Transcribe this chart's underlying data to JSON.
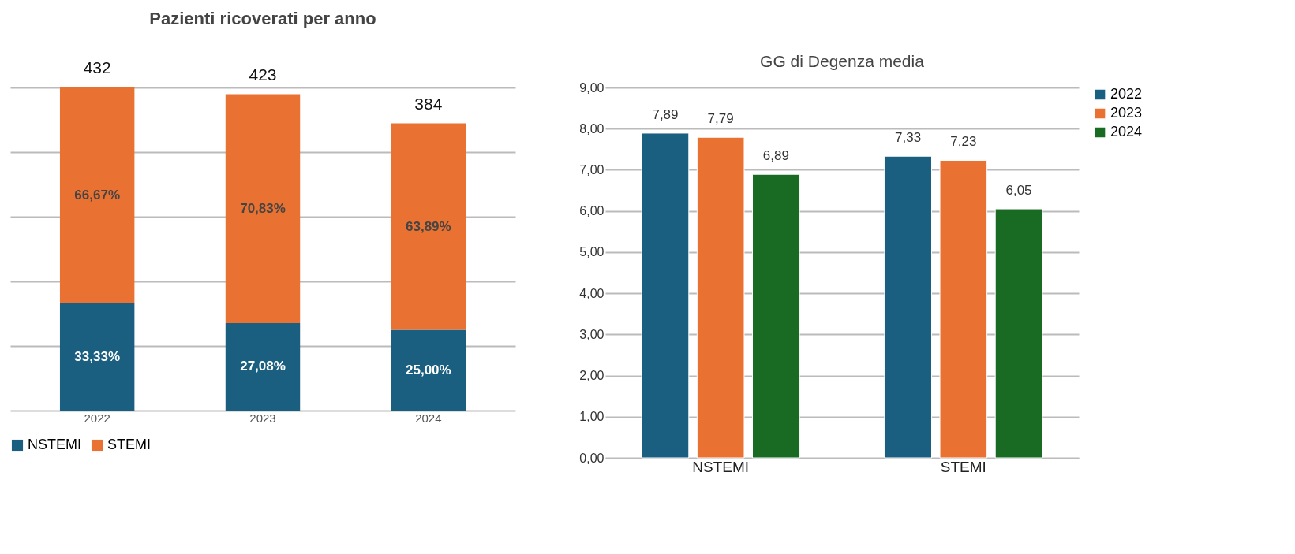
{
  "chart_data": [
    {
      "type": "bar",
      "title": "Pazienti ricoverati per anno",
      "stacked": true,
      "categories": [
        "2022",
        "2023",
        "2024"
      ],
      "series": [
        {
          "name": "NSTEMI",
          "color": "#1a5e80",
          "values": [
            33.33,
            27.08,
            25.0
          ],
          "value_labels": [
            "33,33%",
            "27,08%",
            "25,00%"
          ]
        },
        {
          "name": "STEMI",
          "color": "#e97132",
          "values": [
            66.67,
            70.83,
            63.89
          ],
          "value_labels": [
            "66,67%",
            "70,83%",
            "63,89%"
          ]
        }
      ],
      "annotations": [
        {
          "text": "432",
          "x": "2022",
          "y": 100
        },
        {
          "text": "423",
          "x": "2023",
          "y": 97.91
        },
        {
          "text": "384",
          "x": "2024",
          "y": 88.89
        }
      ],
      "tick_labels": "x",
      "grid": "y",
      "legend": "bottom"
    },
    {
      "type": "bar",
      "title": "GG di Degenza media",
      "categories": [
        "NSTEMI",
        "STEMI"
      ],
      "series": [
        {
          "name": "2022",
          "color": "#1a5e80",
          "values": [
            7.89,
            7.33
          ],
          "value_labels": [
            "7,89",
            "7,33"
          ]
        },
        {
          "name": "2023",
          "color": "#e97132",
          "values": [
            7.79,
            7.23
          ],
          "value_labels": [
            "7,79",
            "7,23"
          ]
        },
        {
          "name": "2024",
          "color": "#196b24",
          "values": [
            6.89,
            6.05
          ],
          "value_labels": [
            "6,89",
            "6,05"
          ]
        }
      ],
      "ylim": [
        0,
        9
      ],
      "yticks": [
        {
          "value": 0,
          "label": "0,00"
        },
        {
          "value": 1,
          "label": "1,00"
        },
        {
          "value": 2,
          "label": "2,00"
        },
        {
          "value": 3,
          "label": "3,00"
        },
        {
          "value": 4,
          "label": "4,00"
        },
        {
          "value": 5,
          "label": "5,00"
        },
        {
          "value": 6,
          "label": "6,00"
        },
        {
          "value": 7,
          "label": "7,00"
        },
        {
          "value": 8,
          "label": "8,00"
        },
        {
          "value": 9,
          "label": "9,00"
        }
      ],
      "grid": "y",
      "legend": "right"
    }
  ]
}
